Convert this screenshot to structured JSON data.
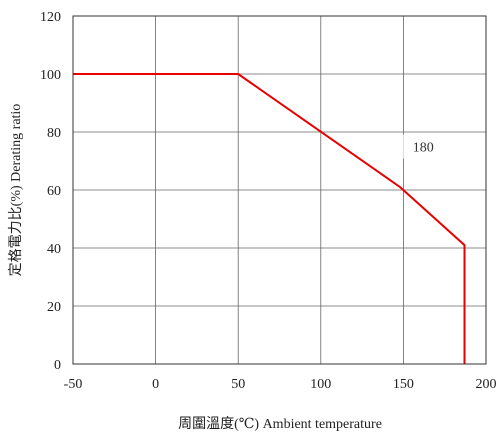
{
  "chart_data": {
    "type": "line",
    "xlabel": "周圍溫度(℃)  Ambient temperature",
    "ylabel": "定格電力比(%)  Derating ratio",
    "xlim": [
      -50,
      200
    ],
    "ylim": [
      0,
      120
    ],
    "x_ticks": [
      -50,
      0,
      50,
      100,
      150,
      200
    ],
    "y_ticks": [
      0,
      20,
      40,
      60,
      80,
      100,
      120
    ],
    "grid": true,
    "series": [
      {
        "color": "#e60000",
        "points": [
          [
            -50,
            100
          ],
          [
            50,
            100
          ],
          [
            148,
            61
          ],
          [
            187,
            41
          ],
          [
            187,
            0
          ]
        ]
      }
    ],
    "annotations": [
      {
        "text": "180",
        "x": 162,
        "y": 75
      }
    ]
  }
}
